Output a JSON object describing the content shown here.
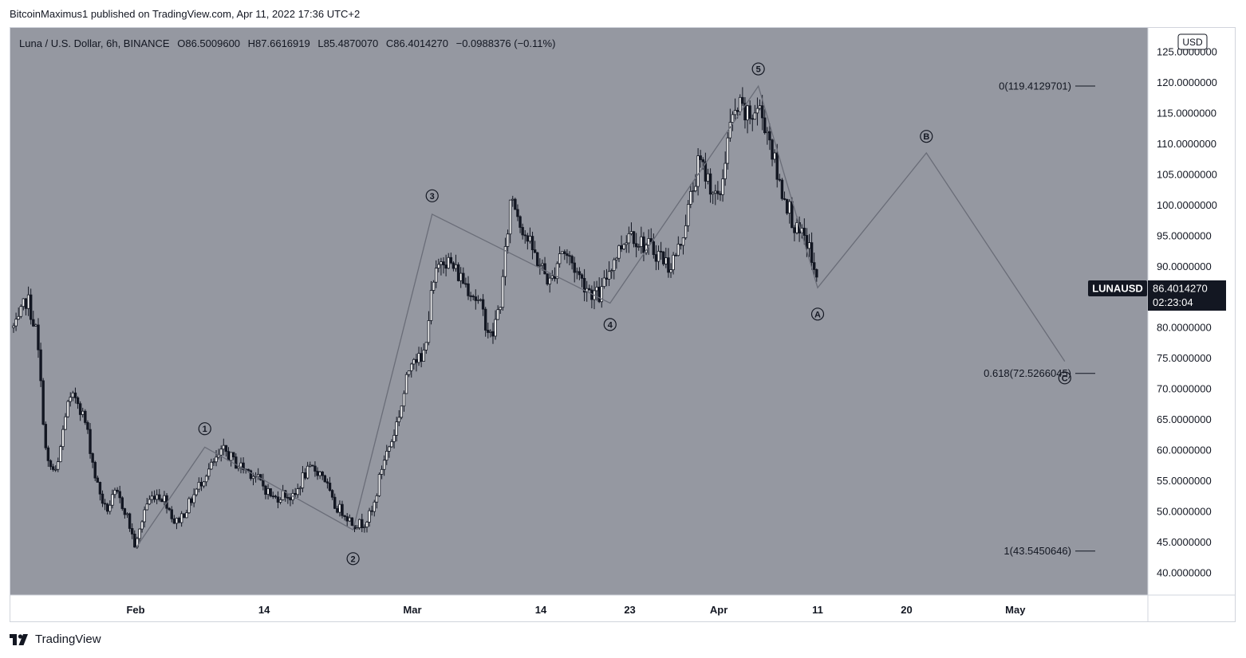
{
  "publish_line": "BitcoinMaximus1 published on TradingView.com, Apr 11, 2022 17:36 UTC+2",
  "brand": "TradingView",
  "colors": {
    "plot_bg": "#9598a1",
    "price_axis_bg": "#ffffff",
    "candle": "#131722",
    "wave_line": "#6a6d78",
    "text": "#131722",
    "label_bg": "#131722",
    "label_text": "#ffffff"
  },
  "legend": {
    "symbol": "Luna / U.S. Dollar, 6h, BINANCE",
    "o_key": "O",
    "o_val": "86.5009600",
    "h_key": "H",
    "h_val": "87.6616919",
    "l_key": "L",
    "l_val": "85.4870070",
    "c_key": "C",
    "c_val": "86.4014270",
    "change": "−0.0988376 (−0.11%)"
  },
  "currency_button": "USD",
  "price_label": {
    "ticker": "LUNAUSD",
    "price": "86.4014270",
    "countdown": "02:23:04"
  },
  "chart_data": {
    "type": "candlestick",
    "title": "Luna / U.S. Dollar, 6h, BINANCE",
    "y_scale": "linear",
    "ylim": [
      37,
      130
    ],
    "y_ticks": [
      {
        "v": 40,
        "label": "40.0000000"
      },
      {
        "v": 45,
        "label": "45.0000000"
      },
      {
        "v": 50,
        "label": "50.0000000"
      },
      {
        "v": 55,
        "label": "55.0000000"
      },
      {
        "v": 60,
        "label": "60.0000000"
      },
      {
        "v": 65,
        "label": "65.0000000"
      },
      {
        "v": 70,
        "label": "70.0000000"
      },
      {
        "v": 75,
        "label": "75.0000000"
      },
      {
        "v": 80,
        "label": "80.0000000"
      },
      {
        "v": 85,
        "label": "85.0000000"
      },
      {
        "v": 90,
        "label": "90.0000000"
      },
      {
        "v": 95,
        "label": "95.0000000"
      },
      {
        "v": 100,
        "label": "100.0000000"
      },
      {
        "v": 105,
        "label": "105.0000000"
      },
      {
        "v": 110,
        "label": "110.0000000"
      },
      {
        "v": 115,
        "label": "115.0000000"
      },
      {
        "v": 120,
        "label": "120.0000000"
      },
      {
        "v": 125,
        "label": "125.0000000"
      }
    ],
    "x_ticks": [
      {
        "date": "2022-02-01",
        "label": "Feb"
      },
      {
        "date": "2022-02-14",
        "label": "14"
      },
      {
        "date": "2022-03-01",
        "label": "Mar"
      },
      {
        "date": "2022-03-14",
        "label": "14"
      },
      {
        "date": "2022-03-23",
        "label": "23"
      },
      {
        "date": "2022-04-01",
        "label": "Apr"
      },
      {
        "date": "2022-04-11",
        "label": "11"
      },
      {
        "date": "2022-04-20",
        "label": "20"
      },
      {
        "date": "2022-05-01",
        "label": "May"
      }
    ],
    "price_path": [
      {
        "date": "2022-01-20",
        "price": 80
      },
      {
        "date": "2022-01-21",
        "price": 85
      },
      {
        "date": "2022-01-22",
        "price": 79
      },
      {
        "date": "2022-01-23",
        "price": 58
      },
      {
        "date": "2022-01-24",
        "price": 56
      },
      {
        "date": "2022-01-25",
        "price": 67
      },
      {
        "date": "2022-01-26",
        "price": 69
      },
      {
        "date": "2022-01-27",
        "price": 64
      },
      {
        "date": "2022-01-28",
        "price": 55
      },
      {
        "date": "2022-01-29",
        "price": 50
      },
      {
        "date": "2022-01-30",
        "price": 53
      },
      {
        "date": "2022-01-31",
        "price": 50
      },
      {
        "date": "2022-02-01",
        "price": 44
      },
      {
        "date": "2022-02-02",
        "price": 51
      },
      {
        "date": "2022-02-03",
        "price": 53
      },
      {
        "date": "2022-02-04",
        "price": 52
      },
      {
        "date": "2022-02-05",
        "price": 48
      },
      {
        "date": "2022-02-06",
        "price": 50
      },
      {
        "date": "2022-02-07",
        "price": 53
      },
      {
        "date": "2022-02-08",
        "price": 56
      },
      {
        "date": "2022-02-09",
        "price": 58
      },
      {
        "date": "2022-02-10",
        "price": 60
      },
      {
        "date": "2022-02-11",
        "price": 58
      },
      {
        "date": "2022-02-12",
        "price": 57
      },
      {
        "date": "2022-02-13",
        "price": 56
      },
      {
        "date": "2022-02-14",
        "price": 54
      },
      {
        "date": "2022-02-15",
        "price": 52
      },
      {
        "date": "2022-02-16",
        "price": 53
      },
      {
        "date": "2022-02-17",
        "price": 52
      },
      {
        "date": "2022-02-18",
        "price": 56
      },
      {
        "date": "2022-02-19",
        "price": 57
      },
      {
        "date": "2022-02-20",
        "price": 56
      },
      {
        "date": "2022-02-21",
        "price": 51
      },
      {
        "date": "2022-02-22",
        "price": 50
      },
      {
        "date": "2022-02-23",
        "price": 48
      },
      {
        "date": "2022-02-24",
        "price": 48
      },
      {
        "date": "2022-02-25",
        "price": 50
      },
      {
        "date": "2022-02-26",
        "price": 58
      },
      {
        "date": "2022-02-27",
        "price": 62
      },
      {
        "date": "2022-02-28",
        "price": 68
      },
      {
        "date": "2022-03-01",
        "price": 76
      },
      {
        "date": "2022-03-02",
        "price": 74
      },
      {
        "date": "2022-03-03",
        "price": 86
      },
      {
        "date": "2022-03-04",
        "price": 92
      },
      {
        "date": "2022-03-05",
        "price": 90
      },
      {
        "date": "2022-03-06",
        "price": 88
      },
      {
        "date": "2022-03-07",
        "price": 86
      },
      {
        "date": "2022-03-08",
        "price": 83
      },
      {
        "date": "2022-03-09",
        "price": 78
      },
      {
        "date": "2022-03-10",
        "price": 85
      },
      {
        "date": "2022-03-11",
        "price": 102
      },
      {
        "date": "2022-03-12",
        "price": 97
      },
      {
        "date": "2022-03-13",
        "price": 93
      },
      {
        "date": "2022-03-14",
        "price": 90
      },
      {
        "date": "2022-03-15",
        "price": 87
      },
      {
        "date": "2022-03-16",
        "price": 93
      },
      {
        "date": "2022-03-17",
        "price": 91
      },
      {
        "date": "2022-03-18",
        "price": 88
      },
      {
        "date": "2022-03-19",
        "price": 86
      },
      {
        "date": "2022-03-20",
        "price": 85
      },
      {
        "date": "2022-03-21",
        "price": 90
      },
      {
        "date": "2022-03-22",
        "price": 93
      },
      {
        "date": "2022-03-23",
        "price": 96
      },
      {
        "date": "2022-03-24",
        "price": 94
      },
      {
        "date": "2022-03-25",
        "price": 93
      },
      {
        "date": "2022-03-26",
        "price": 92
      },
      {
        "date": "2022-03-27",
        "price": 90
      },
      {
        "date": "2022-03-28",
        "price": 93
      },
      {
        "date": "2022-03-29",
        "price": 100
      },
      {
        "date": "2022-03-30",
        "price": 107
      },
      {
        "date": "2022-03-31",
        "price": 104
      },
      {
        "date": "2022-04-01",
        "price": 100
      },
      {
        "date": "2022-04-02",
        "price": 112
      },
      {
        "date": "2022-04-03",
        "price": 116
      },
      {
        "date": "2022-04-04",
        "price": 114
      },
      {
        "date": "2022-04-05",
        "price": 116
      },
      {
        "date": "2022-04-06",
        "price": 112
      },
      {
        "date": "2022-04-07",
        "price": 104
      },
      {
        "date": "2022-04-08",
        "price": 100
      },
      {
        "date": "2022-04-09",
        "price": 95
      },
      {
        "date": "2022-04-10",
        "price": 94
      },
      {
        "date": "2022-04-11",
        "price": 86.4
      }
    ],
    "wave_path": [
      {
        "date": "2022-02-01",
        "price": 44
      },
      {
        "date": "2022-02-08",
        "price": 60.5
      },
      {
        "date": "2022-02-23",
        "price": 47
      },
      {
        "date": "2022-03-03",
        "price": 98.5
      },
      {
        "date": "2022-03-21",
        "price": 84
      },
      {
        "date": "2022-04-05",
        "price": 119.4
      },
      {
        "date": "2022-04-11",
        "price": 86.5
      },
      {
        "date": "2022-04-22",
        "price": 108.5
      },
      {
        "date": "2022-05-06",
        "price": 74.5
      }
    ],
    "wave_labels": [
      {
        "text": "1",
        "date": "2022-02-08",
        "price": 63.5,
        "style": "filled"
      },
      {
        "text": "2",
        "date": "2022-02-23",
        "price": 42.3,
        "style": "filled"
      },
      {
        "text": "3",
        "date": "2022-03-03",
        "price": 101.5,
        "style": "filled"
      },
      {
        "text": "4",
        "date": "2022-03-21",
        "price": 80.5,
        "style": "filled"
      },
      {
        "text": "5",
        "date": "2022-04-05",
        "price": 122.2,
        "style": "filled"
      },
      {
        "text": "A",
        "date": "2022-04-11",
        "price": 82.2,
        "style": "outline"
      },
      {
        "text": "B",
        "date": "2022-04-22",
        "price": 111.2,
        "style": "outline"
      },
      {
        "text": "C",
        "date": "2022-05-06",
        "price": 71.8,
        "style": "outline"
      }
    ],
    "fib_levels": [
      {
        "label": "0(119.4129701)",
        "price": 119.4129701
      },
      {
        "label": "0.618(72.5266045)",
        "price": 72.5266045
      },
      {
        "label": "1(43.5450646)",
        "price": 43.5450646
      }
    ],
    "last_price": 86.401427
  }
}
